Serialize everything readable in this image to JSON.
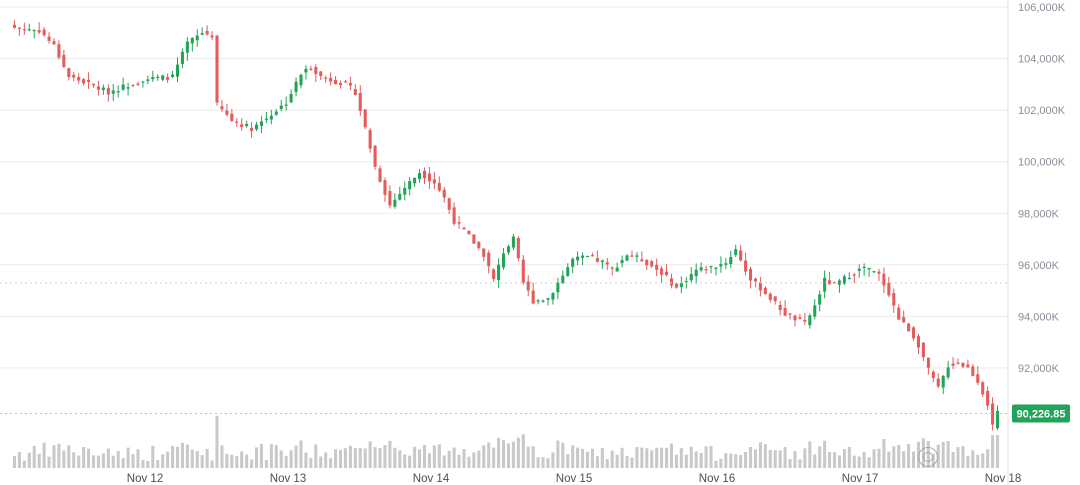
{
  "chart_data": {
    "type": "candlestick",
    "y_ticks": [
      "106,000K",
      "104,000K",
      "102,000K",
      "100,000K",
      "98,000K",
      "96,000K",
      "94,000K",
      "92,000K"
    ],
    "y_tick_values": [
      106000,
      104000,
      102000,
      100000,
      98000,
      96000,
      94000,
      92000
    ],
    "x_ticks": [
      "Nov 12",
      "Nov 13",
      "Nov 14",
      "Nov 15",
      "Nov 16",
      "Nov 17",
      "Nov 18"
    ],
    "ylim": [
      89200,
      106200
    ],
    "current_price": 90226.85,
    "current_price_label": "90,226.85",
    "grid": true,
    "up_color": "#22a35a",
    "down_color": "#e45b5b",
    "volume_color": "#c9c9c9",
    "close_anchors": [
      [
        0,
        105200
      ],
      [
        5,
        105100
      ],
      [
        8,
        104500
      ],
      [
        11,
        103300
      ],
      [
        14,
        103100
      ],
      [
        19,
        102700
      ],
      [
        26,
        103200
      ],
      [
        32,
        103300
      ],
      [
        35,
        104600
      ],
      [
        38,
        105000
      ],
      [
        40,
        104900
      ],
      [
        41,
        102200
      ],
      [
        44,
        101600
      ],
      [
        48,
        101300
      ],
      [
        51,
        101700
      ],
      [
        55,
        102300
      ],
      [
        58,
        103400
      ],
      [
        60,
        103700
      ],
      [
        62,
        103300
      ],
      [
        67,
        103000
      ],
      [
        69,
        102700
      ],
      [
        71,
        101300
      ],
      [
        73,
        99800
      ],
      [
        76,
        98300
      ],
      [
        79,
        99000
      ],
      [
        82,
        99600
      ],
      [
        85,
        99200
      ],
      [
        87,
        98600
      ],
      [
        89,
        97700
      ],
      [
        92,
        97100
      ],
      [
        95,
        96400
      ],
      [
        97,
        95400
      ],
      [
        99,
        96500
      ],
      [
        101,
        97000
      ],
      [
        103,
        95300
      ],
      [
        105,
        94600
      ],
      [
        108,
        94700
      ],
      [
        111,
        95600
      ],
      [
        113,
        96200
      ],
      [
        116,
        96300
      ],
      [
        119,
        96100
      ],
      [
        121,
        95800
      ],
      [
        124,
        96400
      ],
      [
        127,
        96200
      ],
      [
        131,
        95700
      ],
      [
        134,
        95100
      ],
      [
        138,
        95800
      ],
      [
        141,
        95900
      ],
      [
        144,
        96100
      ],
      [
        146,
        96600
      ],
      [
        149,
        95400
      ],
      [
        151,
        95100
      ],
      [
        154,
        94500
      ],
      [
        156,
        94100
      ],
      [
        158,
        93900
      ],
      [
        160,
        93700
      ],
      [
        162,
        94400
      ],
      [
        164,
        95400
      ],
      [
        166,
        95200
      ],
      [
        169,
        95600
      ],
      [
        172,
        95900
      ],
      [
        175,
        95600
      ],
      [
        177,
        94900
      ],
      [
        179,
        93900
      ],
      [
        181,
        93500
      ],
      [
        183,
        92900
      ],
      [
        185,
        91900
      ],
      [
        187,
        91200
      ],
      [
        189,
        92100
      ],
      [
        191,
        92200
      ],
      [
        193,
        92000
      ],
      [
        195,
        91500
      ],
      [
        197,
        90600
      ],
      [
        198,
        89700
      ],
      [
        199,
        90226.85
      ]
    ]
  }
}
